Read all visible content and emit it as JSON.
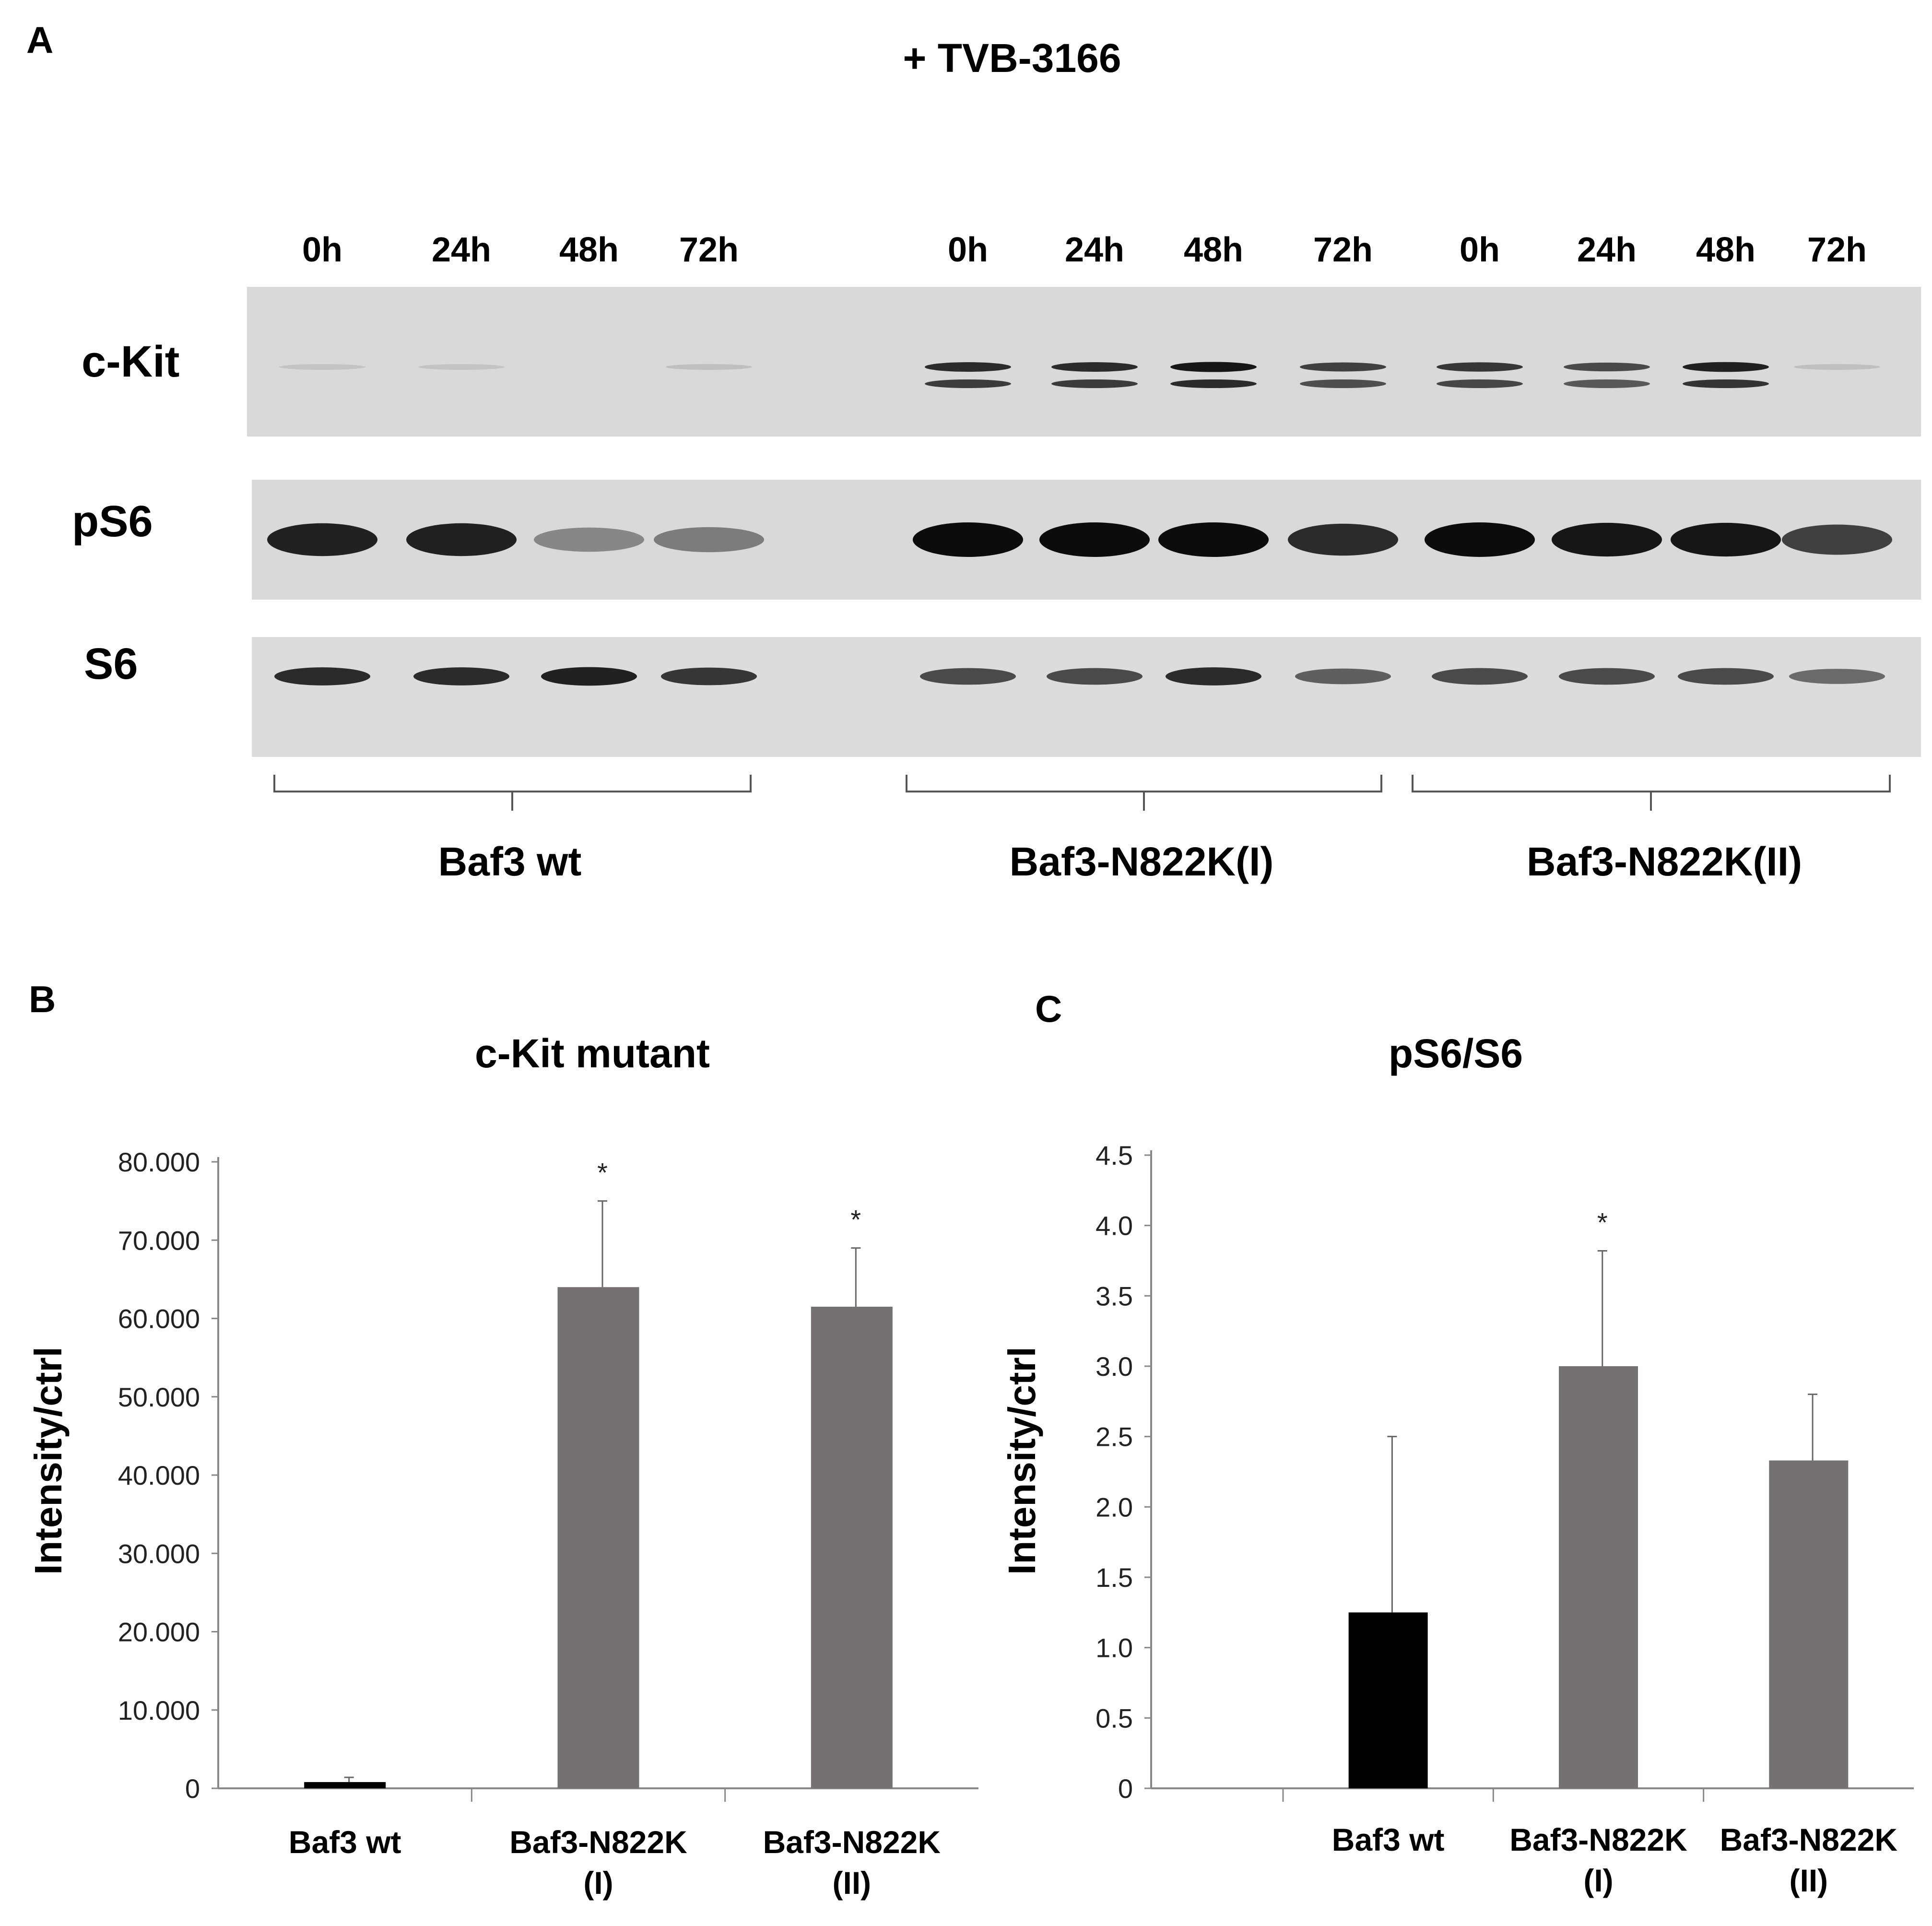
{
  "panel_a": {
    "letter": "A",
    "title": "+ TVB-3166",
    "time_labels": [
      "0h",
      "24h",
      "48h",
      "72h",
      "0h",
      "24h",
      "48h",
      "72h",
      "0h",
      "24h",
      "48h",
      "72h"
    ],
    "blots": [
      {
        "name": "c-Kit",
        "bands": [
          0.1,
          0.1,
          0.0,
          0.12,
          0.85,
          0.85,
          0.95,
          0.75,
          0.8,
          0.7,
          0.9,
          0.12
        ]
      },
      {
        "name": "pS6",
        "bands": [
          0.9,
          0.9,
          0.4,
          0.45,
          1.0,
          1.0,
          1.0,
          0.85,
          1.0,
          0.95,
          0.95,
          0.75
        ]
      },
      {
        "name": "S6",
        "bands": [
          0.85,
          0.85,
          0.9,
          0.8,
          0.7,
          0.7,
          0.85,
          0.6,
          0.7,
          0.7,
          0.7,
          0.55
        ]
      }
    ],
    "groups": [
      "Baf3 wt",
      "Baf3-N822K(I)",
      "Baf3-N822K(II)"
    ],
    "colors": {
      "membrane": "#d6d6d6",
      "band": "#0c0c0c"
    }
  },
  "chart_data": [
    {
      "panel": "B",
      "type": "bar",
      "title": "c-Kit mutant",
      "ylabel": "Intensity/ctrl",
      "xlabel": "",
      "ylim": [
        0,
        80
      ],
      "yticks": [
        0,
        10,
        20,
        30,
        40,
        50,
        60,
        70,
        80
      ],
      "ytick_labels": [
        "0",
        "10.000",
        "20.000",
        "30.000",
        "40.000",
        "50.000",
        "60.000",
        "70.000",
        "80.000"
      ],
      "categories": [
        [
          "Baf3 wt"
        ],
        [
          "Baf3-N822K",
          "(I)"
        ],
        [
          "Baf3-N822K",
          "(II)"
        ]
      ],
      "values": [
        0.8,
        64,
        61.5
      ],
      "errors": [
        0.6,
        11,
        7.5
      ],
      "significance": [
        "",
        "*",
        "*"
      ],
      "colors": [
        "#000000",
        "#767171",
        "#767171"
      ]
    },
    {
      "panel": "C",
      "type": "bar",
      "title": "pS6/S6",
      "ylabel": "Intensity/ctrl",
      "xlabel": "",
      "ylim": [
        0,
        4.5
      ],
      "yticks": [
        0,
        0.5,
        1,
        1.5,
        2,
        2.5,
        3,
        3.5,
        4,
        4.5
      ],
      "ytick_labels": [
        "0",
        "0.5",
        "1.0",
        "1.5",
        "2.0",
        "2.5",
        "3.0",
        "3.5",
        "4.0",
        "4.5"
      ],
      "categories": [
        [
          "Baf3 wt"
        ],
        [
          "Baf3-N822K",
          "(I)"
        ],
        [
          "Baf3-N822K",
          "(II)"
        ]
      ],
      "values": [
        1.25,
        3.0,
        2.33
      ],
      "errors": [
        1.25,
        0.82,
        0.47
      ],
      "significance": [
        "",
        "*",
        ""
      ],
      "colors": [
        "#000000",
        "#767171",
        "#767171"
      ]
    }
  ]
}
